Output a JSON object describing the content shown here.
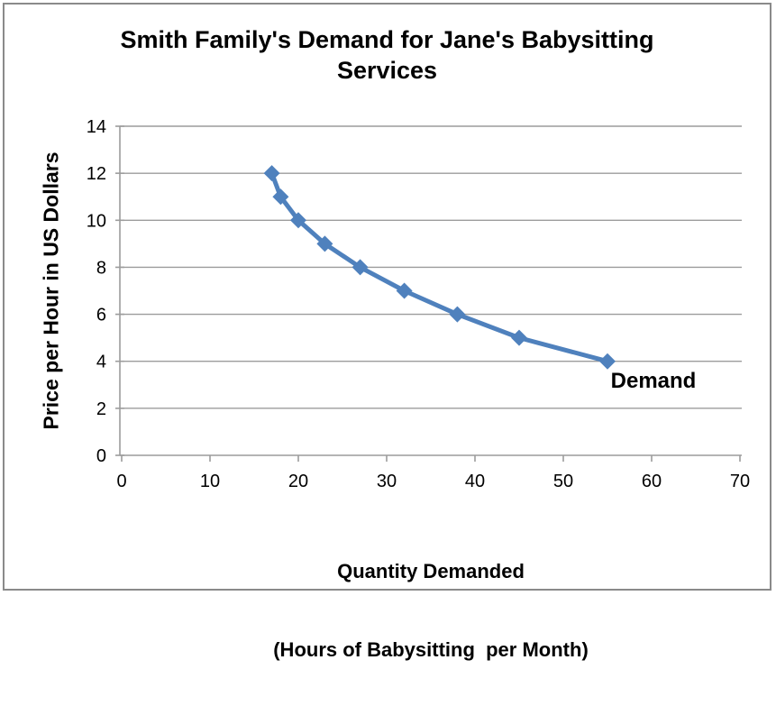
{
  "frame": {
    "border_color": "#8a8a8a",
    "background_color": "#ffffff"
  },
  "chart_data": {
    "type": "line",
    "title": "Smith Family's Demand for Jane's Babysitting Services",
    "ylabel": "Price per Hour in US Dollars",
    "xlabel_lines": [
      "Quantity Demanded",
      "(Hours of Babysitting  per Month)"
    ],
    "series": [
      {
        "name": "Demand",
        "color": "#4F81BD",
        "marker": "diamond",
        "points": [
          [
            17,
            12
          ],
          [
            18,
            11
          ],
          [
            20,
            10
          ],
          [
            23,
            9
          ],
          [
            27,
            8
          ],
          [
            32,
            7
          ],
          [
            38,
            6
          ],
          [
            45,
            5
          ],
          [
            55,
            4
          ]
        ]
      }
    ],
    "xlim": [
      0,
      70
    ],
    "ylim": [
      0,
      14
    ],
    "xticks": [
      0,
      10,
      20,
      30,
      40,
      50,
      60,
      70
    ],
    "yticks": [
      0,
      2,
      4,
      6,
      8,
      10,
      12,
      14
    ],
    "grid": "horizontal",
    "legend_position": "inline-annotation",
    "grid_color": "#9c9c9c",
    "axis_color": "#9c9c9c",
    "text_color": "#000000"
  }
}
